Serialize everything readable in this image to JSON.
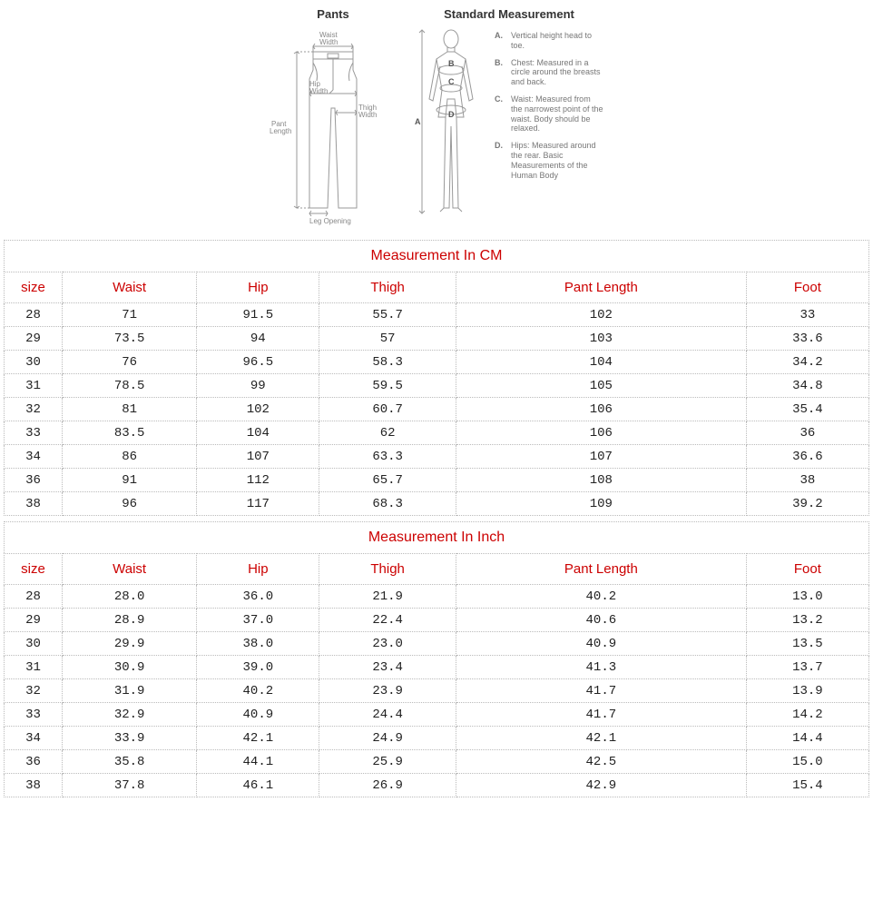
{
  "diagrams": {
    "pants": {
      "title": "Pants",
      "labels": {
        "waist_width": "Waist\nWidth",
        "hip_width": "Hip\nWidth",
        "thigh_width": "Thigh\nWidth",
        "pant_length": "Pant\nLength",
        "leg_opening": "Leg Opening"
      },
      "line_color": "#999999",
      "text_color": "#888888"
    },
    "standard": {
      "title": "Standard Measurement",
      "body_labels": {
        "a": "A",
        "b": "B",
        "c": "C",
        "d": "D"
      },
      "legend": [
        {
          "key": "A.",
          "text": "Vertical height head to toe."
        },
        {
          "key": "B.",
          "text": "Chest: Measured in a circle around the breasts and back."
        },
        {
          "key": "C.",
          "text": "Waist: Measured from the narrowest point of the waist. Body should be relaxed."
        },
        {
          "key": "D.",
          "text": "Hips: Measured around the rear. Basic Measurements of the Human Body"
        }
      ],
      "line_color": "#999999",
      "text_color": "#888888"
    }
  },
  "tables": {
    "header_color": "#cc0000",
    "border_color": "#bbbbbb",
    "cm": {
      "caption": "Measurement In CM",
      "columns": [
        "size",
        "Waist",
        "Hip",
        "Thigh",
        "Pant Length",
        "Foot"
      ],
      "rows": [
        [
          "28",
          "71",
          "91.5",
          "55.7",
          "102",
          "33"
        ],
        [
          "29",
          "73.5",
          "94",
          "57",
          "103",
          "33.6"
        ],
        [
          "30",
          "76",
          "96.5",
          "58.3",
          "104",
          "34.2"
        ],
        [
          "31",
          "78.5",
          "99",
          "59.5",
          "105",
          "34.8"
        ],
        [
          "32",
          "81",
          "102",
          "60.7",
          "106",
          "35.4"
        ],
        [
          "33",
          "83.5",
          "104",
          "62",
          "106",
          "36"
        ],
        [
          "34",
          "86",
          "107",
          "63.3",
          "107",
          "36.6"
        ],
        [
          "36",
          "91",
          "112",
          "65.7",
          "108",
          "38"
        ],
        [
          "38",
          "96",
          "117",
          "68.3",
          "109",
          "39.2"
        ]
      ]
    },
    "inch": {
      "caption": "Measurement In Inch",
      "columns": [
        "size",
        "Waist",
        "Hip",
        "Thigh",
        "Pant Length",
        "Foot"
      ],
      "rows": [
        [
          "28",
          "28.0",
          "36.0",
          "21.9",
          "40.2",
          "13.0"
        ],
        [
          "29",
          "28.9",
          "37.0",
          "22.4",
          "40.6",
          "13.2"
        ],
        [
          "30",
          "29.9",
          "38.0",
          "23.0",
          "40.9",
          "13.5"
        ],
        [
          "31",
          "30.9",
          "39.0",
          "23.4",
          "41.3",
          "13.7"
        ],
        [
          "32",
          "31.9",
          "40.2",
          "23.9",
          "41.7",
          "13.9"
        ],
        [
          "33",
          "32.9",
          "40.9",
          "24.4",
          "41.7",
          "14.2"
        ],
        [
          "34",
          "33.9",
          "42.1",
          "24.9",
          "42.1",
          "14.4"
        ],
        [
          "36",
          "35.8",
          "44.1",
          "25.9",
          "42.5",
          "15.0"
        ],
        [
          "38",
          "37.8",
          "46.1",
          "26.9",
          "42.9",
          "15.4"
        ]
      ]
    }
  }
}
